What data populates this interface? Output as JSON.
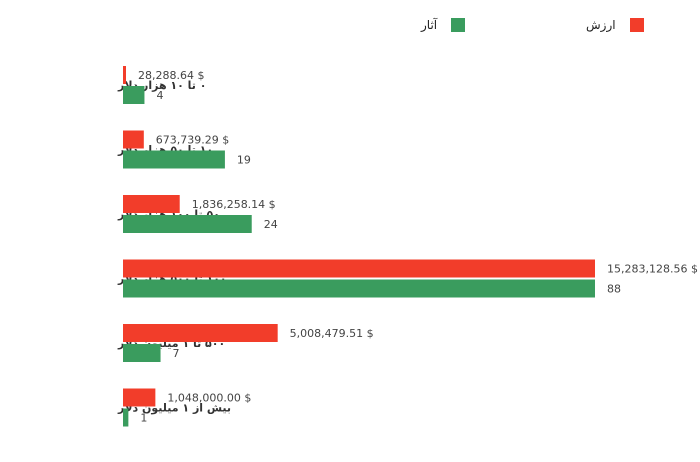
{
  "chart_data": {
    "type": "bar",
    "orientation": "horizontal",
    "categories": [
      "۰ تا ۱۰ هزار دلار",
      "۱۰ تا ۵۰ هزار دلار",
      "۵۰ تا ۱۰۰ هزار دلار",
      "۱۰۰ تا ۵۰۰ هزار دلار",
      "۵۰۰ تا ۱ میلیون دلار",
      "بیش از ۱ میلیون دلار"
    ],
    "series": [
      {
        "name": "ارزش",
        "color": "#f23d2a",
        "values": [
          28288.64,
          673739.29,
          1836258.14,
          15283128.56,
          5008479.51,
          1048000.0
        ],
        "labels": [
          "28,288.64 $",
          "673,739.29 $",
          "1,836,258.14 $",
          "15,283,128.56 $",
          "5,008,479.51 $",
          "1,048,000.00 $"
        ]
      },
      {
        "name": "آثار",
        "color": "#3a9c5e",
        "values": [
          4,
          19,
          24,
          88,
          7,
          1
        ],
        "labels": [
          "4",
          "19",
          "24",
          "88",
          "7",
          "1"
        ]
      }
    ],
    "legend_position": "top",
    "grid": false
  }
}
